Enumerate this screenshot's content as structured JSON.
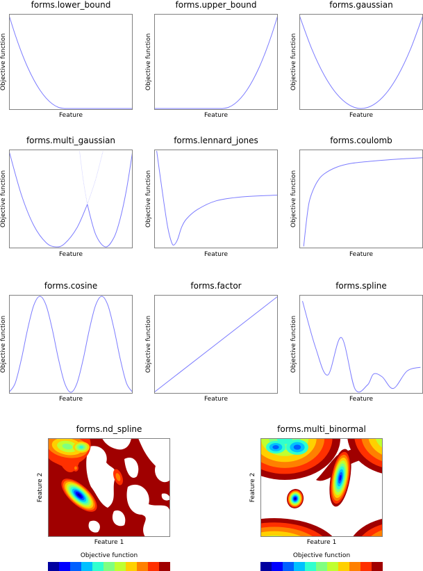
{
  "chart_data": [
    {
      "type": "line",
      "title": "forms.lower_bound",
      "xlabel": "Feature",
      "ylabel": "Objective function",
      "grid": false,
      "series": [
        {
          "x": [
            0,
            0.05,
            0.1,
            0.15,
            0.2,
            0.25,
            0.3,
            0.35,
            0.4,
            0.45,
            0.5,
            0.95,
            1
          ],
          "y": [
            1,
            0.79,
            0.605,
            0.444,
            0.309,
            0.198,
            0.111,
            0.049,
            0.012,
            0,
            0,
            0,
            0
          ]
        }
      ]
    },
    {
      "type": "line",
      "title": "forms.upper_bound",
      "xlabel": "Feature",
      "ylabel": "Objective function",
      "grid": false,
      "series": [
        {
          "x": [
            0,
            0.05,
            0.5,
            0.55,
            0.6,
            0.65,
            0.7,
            0.75,
            0.8,
            0.85,
            0.9,
            0.95,
            1
          ],
          "y": [
            0,
            0,
            0,
            0,
            0.012,
            0.049,
            0.111,
            0.198,
            0.309,
            0.444,
            0.605,
            0.79,
            1
          ]
        }
      ]
    },
    {
      "type": "line",
      "title": "forms.gaussian",
      "xlabel": "Feature",
      "ylabel": "Objective function",
      "grid": false,
      "series": [
        {
          "x": [
            0,
            0.1,
            0.2,
            0.3,
            0.4,
            0.5,
            0.6,
            0.7,
            0.8,
            0.9,
            1
          ],
          "y": [
            1,
            0.64,
            0.36,
            0.16,
            0.04,
            0,
            0.04,
            0.16,
            0.36,
            0.64,
            1
          ]
        }
      ]
    },
    {
      "type": "line",
      "title": "forms.multi_gaussian",
      "xlabel": "Feature",
      "ylabel": "Objective function",
      "grid": false,
      "series": [
        {
          "x": [
            0,
            0.1,
            0.2,
            0.3,
            0.38,
            0.45,
            0.55,
            0.633
          ],
          "y": [
            1,
            0.543,
            0.224,
            0.044,
            0,
            0.034,
            0.2,
            0.443
          ]
        },
        {
          "x": [
            0.633,
            0.7,
            0.78,
            0.85,
            0.9,
            0.95,
            1
          ],
          "y": [
            0.443,
            0.132,
            0,
            0.101,
            0.298,
            0.597,
            1
          ]
        },
        {
          "x": [
            0.633,
            0.7,
            0.76
          ],
          "y": [
            0.443,
            0.7,
            1
          ],
          "style": "faint"
        },
        {
          "x": [
            0.633,
            0.6,
            0.57
          ],
          "y": [
            0.443,
            0.7,
            1
          ],
          "style": "faint"
        }
      ]
    },
    {
      "type": "line",
      "title": "forms.lennard_jones",
      "xlabel": "Feature",
      "ylabel": "Objective function",
      "grid": false,
      "series": [
        {
          "x": [
            0.02,
            0.05,
            0.08,
            0.11,
            0.14,
            0.16,
            0.19,
            0.22,
            0.26,
            0.35,
            0.5,
            0.7,
            1
          ],
          "y": [
            1,
            0.72,
            0.45,
            0.2,
            0.05,
            0.02,
            0.08,
            0.2,
            0.29,
            0.39,
            0.48,
            0.52,
            0.54
          ]
        }
      ]
    },
    {
      "type": "line",
      "title": "forms.coulomb",
      "xlabel": "Feature",
      "ylabel": "Objective function",
      "grid": false,
      "series": [
        {
          "x": [
            0.035,
            0.06,
            0.08,
            0.11,
            0.15,
            0.2,
            0.3,
            0.42,
            0.6,
            0.8,
            1
          ],
          "y": [
            0.005,
            0.3,
            0.47,
            0.59,
            0.69,
            0.76,
            0.83,
            0.87,
            0.895,
            0.915,
            0.93
          ]
        }
      ]
    },
    {
      "type": "line",
      "title": "forms.cosine",
      "xlabel": "Feature",
      "ylabel": "Objective function",
      "grid": false,
      "series": [
        {
          "x": [
            0,
            0.05,
            0.1,
            0.15,
            0.2,
            0.25,
            0.3,
            0.35,
            0.4,
            0.45,
            0.5,
            0.55,
            0.6,
            0.65,
            0.7,
            0.75,
            0.8,
            0.85,
            0.9,
            0.95,
            1
          ],
          "y": [
            0,
            0.095,
            0.345,
            0.655,
            0.905,
            1,
            0.905,
            0.655,
            0.345,
            0.095,
            0,
            0.095,
            0.345,
            0.655,
            0.905,
            1,
            0.905,
            0.655,
            0.345,
            0.095,
            0
          ]
        }
      ]
    },
    {
      "type": "line",
      "title": "forms.factor",
      "xlabel": "Feature",
      "ylabel": "Objective function",
      "grid": false,
      "series": [
        {
          "x": [
            0,
            1
          ],
          "y": [
            0,
            1
          ]
        }
      ]
    },
    {
      "type": "line",
      "title": "forms.spline",
      "xlabel": "Feature",
      "ylabel": "Objective function",
      "grid": false,
      "series": [
        {
          "x": [
            0.025,
            0.13,
            0.23,
            0.34,
            0.45,
            0.55,
            0.6,
            0.67,
            0.76,
            0.87,
            0.98
          ],
          "y": [
            0.95,
            0.47,
            0.18,
            0.57,
            0.035,
            0.075,
            0.19,
            0.16,
            0.04,
            0.22,
            0.26
          ]
        }
      ]
    },
    {
      "type": "heatmap",
      "title": "forms.nd_spline",
      "xlabel": "Feature 1",
      "ylabel": "Feature 2",
      "colorbar_label": "Objective function",
      "colorbar_levels": 11
    },
    {
      "type": "heatmap",
      "title": "forms.multi_binormal",
      "xlabel": "Feature 1",
      "ylabel": "Feature 2",
      "colorbar_label": "Objective function",
      "colorbar_levels": 11
    }
  ],
  "colors": {
    "line": "#7b7bff",
    "frame": "#808080",
    "levels": [
      "#00009f",
      "#0000ff",
      "#0060ff",
      "#00c0ff",
      "#30ffcf",
      "#80ff80",
      "#c0ff30",
      "#ffd000",
      "#ff8000",
      "#ff3000",
      "#a00000"
    ]
  }
}
